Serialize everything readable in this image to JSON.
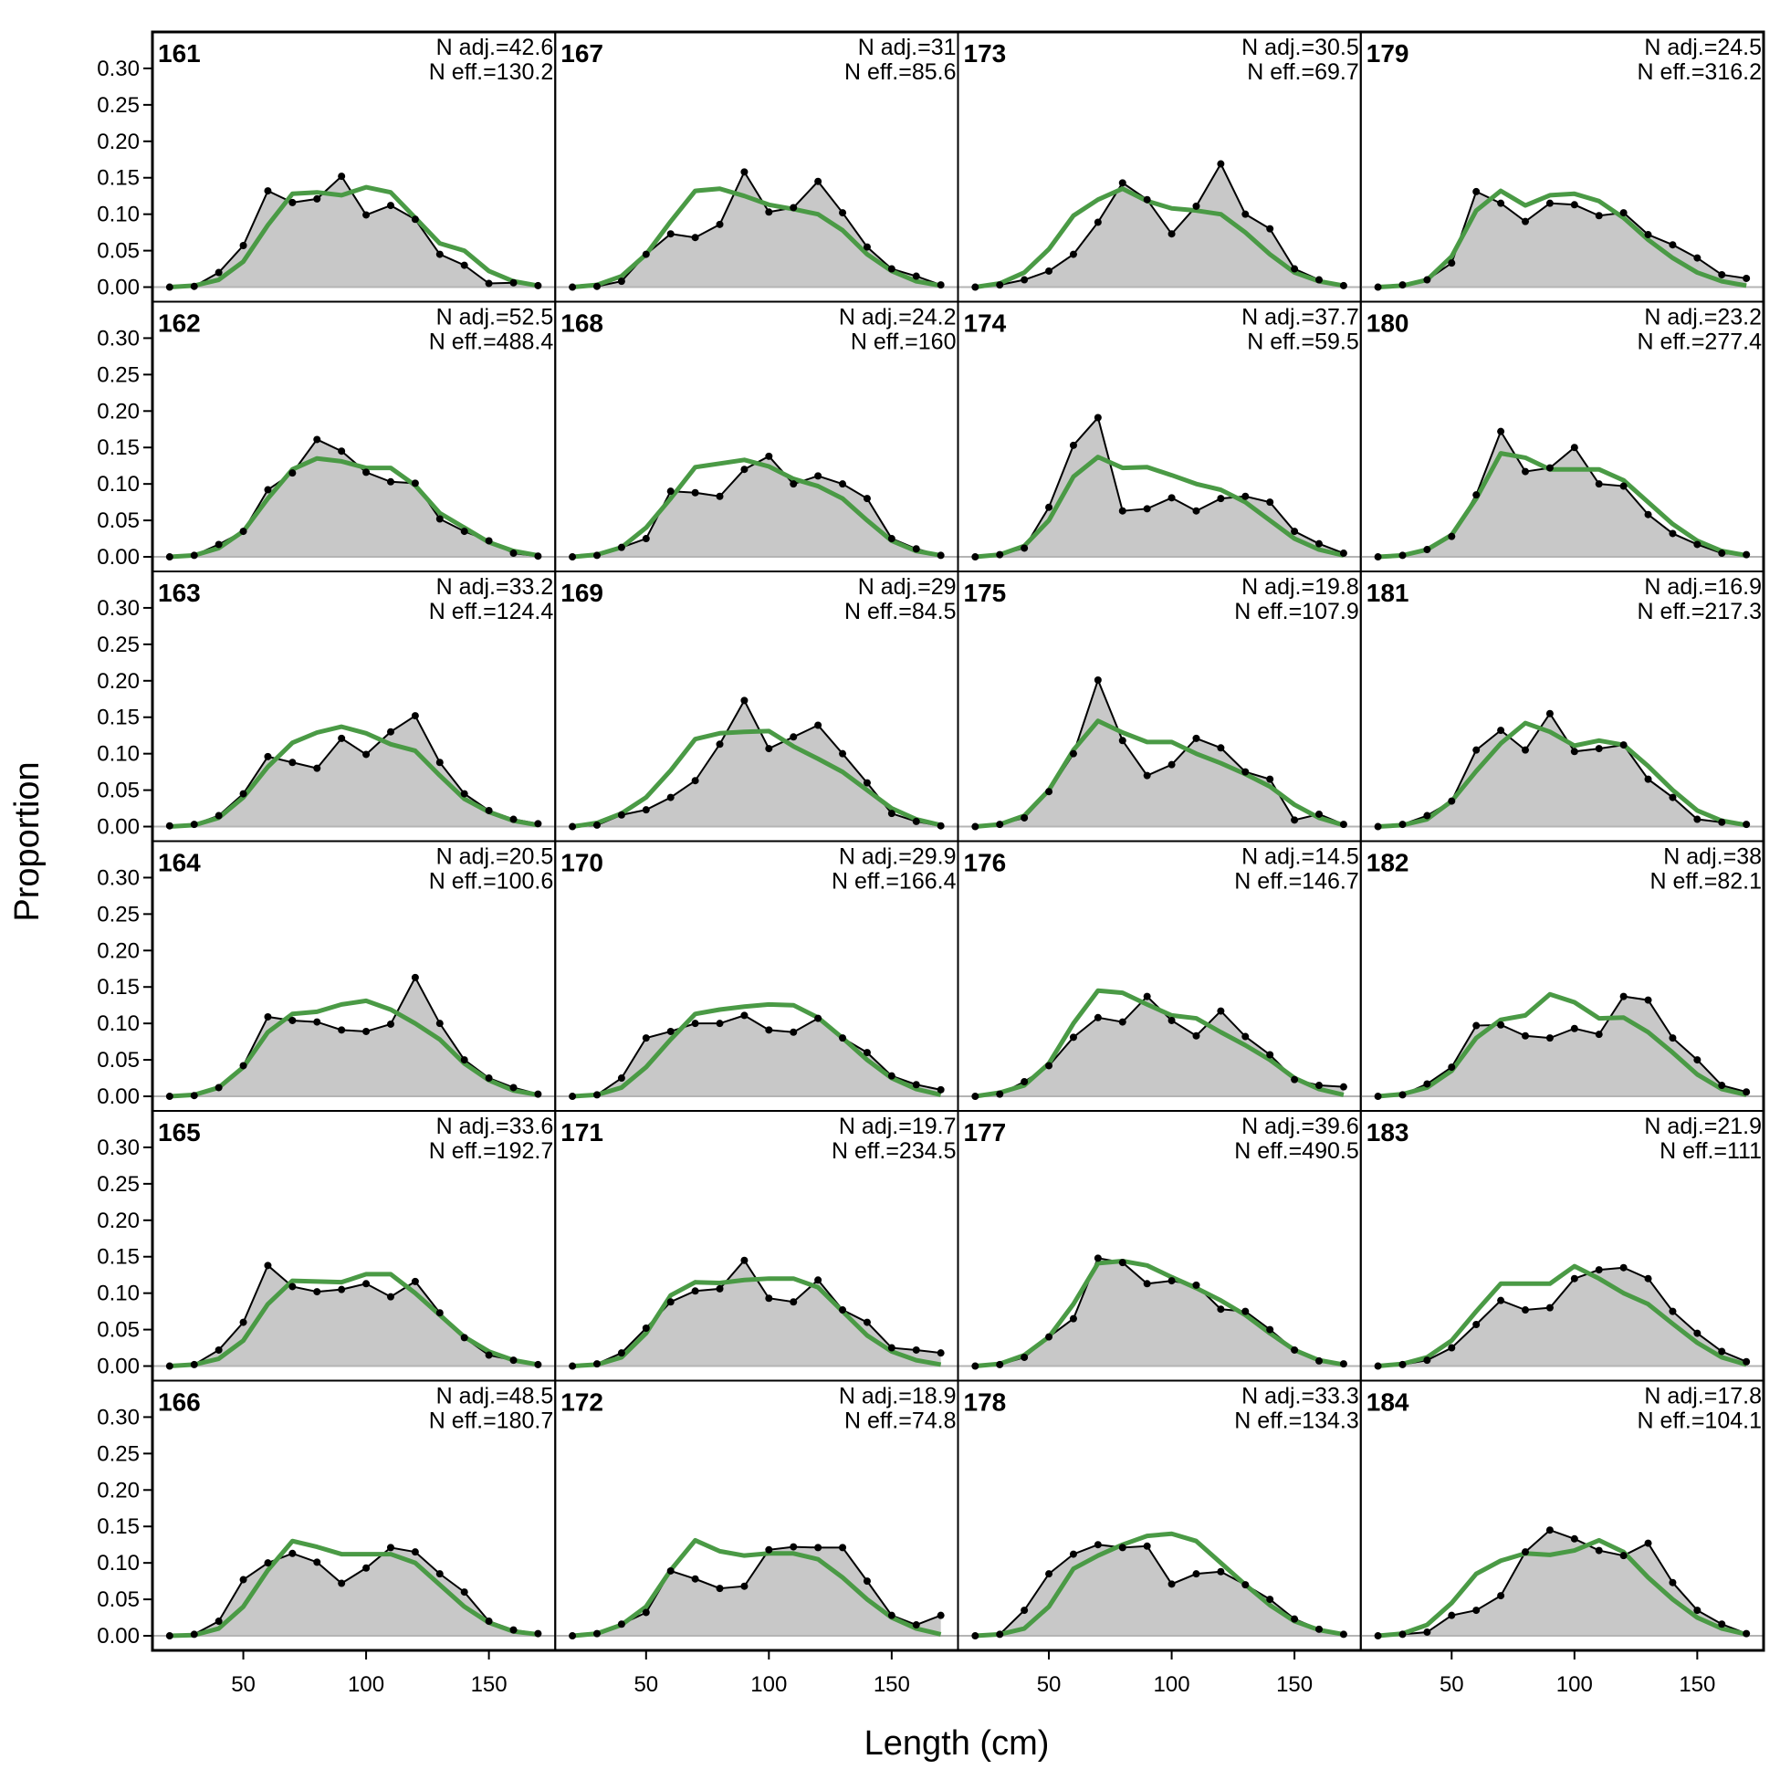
{
  "chart_data": {
    "type": "area",
    "xlabel": "Length (cm)",
    "ylabel": "Proportion",
    "xlim": [
      13,
      177
    ],
    "ylim": [
      -0.02,
      0.35
    ],
    "x_ticks": [
      50,
      100,
      150
    ],
    "y_ticks": [
      "0.00",
      "0.05",
      "0.10",
      "0.15",
      "0.20",
      "0.25",
      "0.30"
    ],
    "x": [
      20,
      30,
      40,
      50,
      60,
      70,
      80,
      90,
      100,
      110,
      120,
      130,
      140,
      150,
      160,
      170
    ],
    "grid": false,
    "layout": {
      "rows": 6,
      "cols": 4,
      "order": "column-major"
    },
    "series_styles": {
      "observed": {
        "fill": "#c8c8c8",
        "line": "#000000",
        "points": true
      },
      "expected": {
        "line": "#4a9a45"
      }
    },
    "panels": [
      {
        "label": "161",
        "n_adj": "N adj.=42.6",
        "n_eff": "N eff.=130.2",
        "observed": [
          0.0,
          0.001,
          0.02,
          0.057,
          0.132,
          0.116,
          0.121,
          0.152,
          0.099,
          0.112,
          0.093,
          0.045,
          0.03,
          0.005,
          0.006,
          0.002
        ],
        "expected": [
          0.0,
          0.002,
          0.01,
          0.035,
          0.085,
          0.128,
          0.13,
          0.126,
          0.137,
          0.13,
          0.095,
          0.06,
          0.05,
          0.022,
          0.008,
          0.002
        ]
      },
      {
        "label": "162",
        "n_adj": "N adj.=52.5",
        "n_eff": "N eff.=488.4",
        "observed": [
          0.0,
          0.002,
          0.017,
          0.035,
          0.092,
          0.115,
          0.161,
          0.145,
          0.116,
          0.103,
          0.101,
          0.052,
          0.035,
          0.022,
          0.005,
          0.001
        ],
        "expected": [
          0.0,
          0.002,
          0.012,
          0.035,
          0.08,
          0.12,
          0.135,
          0.131,
          0.122,
          0.122,
          0.098,
          0.06,
          0.04,
          0.02,
          0.008,
          0.002
        ]
      },
      {
        "label": "163",
        "n_adj": "N adj.=33.2",
        "n_eff": "N eff.=124.4",
        "observed": [
          0.001,
          0.003,
          0.015,
          0.045,
          0.096,
          0.088,
          0.08,
          0.121,
          0.099,
          0.13,
          0.152,
          0.088,
          0.045,
          0.022,
          0.01,
          0.004
        ],
        "expected": [
          0.0,
          0.002,
          0.012,
          0.04,
          0.082,
          0.115,
          0.129,
          0.137,
          0.128,
          0.113,
          0.104,
          0.07,
          0.038,
          0.02,
          0.008,
          0.002
        ]
      },
      {
        "label": "164",
        "n_adj": "N adj.=20.5",
        "n_eff": "N eff.=100.6",
        "observed": [
          0.0,
          0.001,
          0.012,
          0.042,
          0.109,
          0.104,
          0.102,
          0.091,
          0.089,
          0.099,
          0.163,
          0.1,
          0.05,
          0.025,
          0.012,
          0.003
        ],
        "expected": [
          0.0,
          0.002,
          0.012,
          0.04,
          0.088,
          0.113,
          0.116,
          0.126,
          0.131,
          0.119,
          0.1,
          0.078,
          0.045,
          0.022,
          0.008,
          0.002
        ]
      },
      {
        "label": "165",
        "n_adj": "N adj.=33.6",
        "n_eff": "N eff.=192.7",
        "observed": [
          0.0,
          0.002,
          0.022,
          0.06,
          0.138,
          0.109,
          0.102,
          0.105,
          0.113,
          0.095,
          0.116,
          0.073,
          0.039,
          0.015,
          0.008,
          0.002
        ],
        "expected": [
          0.0,
          0.002,
          0.01,
          0.035,
          0.085,
          0.117,
          0.116,
          0.115,
          0.126,
          0.126,
          0.1,
          0.07,
          0.04,
          0.02,
          0.008,
          0.002
        ]
      },
      {
        "label": "166",
        "n_adj": "N adj.=48.5",
        "n_eff": "N eff.=180.7",
        "observed": [
          0.0,
          0.002,
          0.02,
          0.077,
          0.1,
          0.113,
          0.101,
          0.072,
          0.093,
          0.121,
          0.115,
          0.085,
          0.06,
          0.02,
          0.008,
          0.003
        ],
        "expected": [
          0.0,
          0.001,
          0.01,
          0.04,
          0.09,
          0.13,
          0.122,
          0.112,
          0.112,
          0.112,
          0.1,
          0.07,
          0.04,
          0.018,
          0.006,
          0.002
        ]
      },
      {
        "label": "167",
        "n_adj": "N adj.=31",
        "n_eff": "N eff.=85.6",
        "observed": [
          0.0,
          0.001,
          0.008,
          0.045,
          0.073,
          0.068,
          0.086,
          0.158,
          0.103,
          0.109,
          0.145,
          0.102,
          0.055,
          0.025,
          0.015,
          0.003
        ],
        "expected": [
          0.0,
          0.003,
          0.015,
          0.045,
          0.09,
          0.132,
          0.135,
          0.125,
          0.113,
          0.107,
          0.1,
          0.078,
          0.045,
          0.022,
          0.008,
          0.002
        ]
      },
      {
        "label": "168",
        "n_adj": "N adj.=24.2",
        "n_eff": "N eff.=160",
        "observed": [
          0.0,
          0.002,
          0.013,
          0.025,
          0.09,
          0.088,
          0.083,
          0.12,
          0.138,
          0.1,
          0.111,
          0.1,
          0.08,
          0.025,
          0.011,
          0.002
        ],
        "expected": [
          0.0,
          0.003,
          0.013,
          0.04,
          0.08,
          0.123,
          0.128,
          0.133,
          0.124,
          0.107,
          0.097,
          0.08,
          0.05,
          0.022,
          0.008,
          0.002
        ]
      },
      {
        "label": "169",
        "n_adj": "N adj.=29",
        "n_eff": "N eff.=84.5",
        "observed": [
          0.0,
          0.002,
          0.016,
          0.023,
          0.04,
          0.063,
          0.113,
          0.173,
          0.107,
          0.123,
          0.139,
          0.1,
          0.06,
          0.018,
          0.007,
          0.001
        ],
        "expected": [
          0.0,
          0.005,
          0.018,
          0.04,
          0.077,
          0.12,
          0.128,
          0.13,
          0.131,
          0.11,
          0.093,
          0.075,
          0.05,
          0.025,
          0.01,
          0.002
        ]
      },
      {
        "label": "170",
        "n_adj": "N adj.=29.9",
        "n_eff": "N eff.=166.4",
        "observed": [
          0.0,
          0.002,
          0.025,
          0.08,
          0.089,
          0.1,
          0.1,
          0.111,
          0.091,
          0.088,
          0.107,
          0.08,
          0.06,
          0.028,
          0.016,
          0.009
        ],
        "expected": [
          0.0,
          0.002,
          0.012,
          0.04,
          0.078,
          0.113,
          0.119,
          0.123,
          0.126,
          0.125,
          0.108,
          0.08,
          0.05,
          0.025,
          0.01,
          0.002
        ]
      },
      {
        "label": "171",
        "n_adj": "N adj.=19.7",
        "n_eff": "N eff.=234.5",
        "observed": [
          0.0,
          0.003,
          0.018,
          0.052,
          0.088,
          0.103,
          0.106,
          0.145,
          0.093,
          0.088,
          0.118,
          0.077,
          0.06,
          0.025,
          0.022,
          0.018
        ],
        "expected": [
          0.0,
          0.002,
          0.012,
          0.045,
          0.097,
          0.115,
          0.114,
          0.118,
          0.12,
          0.12,
          0.108,
          0.075,
          0.042,
          0.02,
          0.008,
          0.002
        ]
      },
      {
        "label": "172",
        "n_adj": "N adj.=18.9",
        "n_eff": "N eff.=74.8",
        "observed": [
          0.0,
          0.003,
          0.016,
          0.032,
          0.089,
          0.078,
          0.065,
          0.068,
          0.118,
          0.122,
          0.121,
          0.121,
          0.075,
          0.028,
          0.015,
          0.028
        ],
        "expected": [
          0.0,
          0.003,
          0.015,
          0.04,
          0.09,
          0.131,
          0.116,
          0.11,
          0.113,
          0.113,
          0.105,
          0.08,
          0.05,
          0.025,
          0.01,
          0.002
        ]
      },
      {
        "label": "173",
        "n_adj": "N adj.=30.5",
        "n_eff": "N eff.=69.7",
        "observed": [
          0.0,
          0.003,
          0.01,
          0.022,
          0.045,
          0.089,
          0.143,
          0.12,
          0.073,
          0.111,
          0.169,
          0.1,
          0.08,
          0.025,
          0.01,
          0.002
        ],
        "expected": [
          0.0,
          0.005,
          0.02,
          0.052,
          0.098,
          0.12,
          0.135,
          0.118,
          0.108,
          0.105,
          0.1,
          0.075,
          0.045,
          0.02,
          0.008,
          0.002
        ]
      },
      {
        "label": "174",
        "n_adj": "N adj.=37.7",
        "n_eff": "N eff.=59.5",
        "observed": [
          0.0,
          0.003,
          0.012,
          0.068,
          0.153,
          0.191,
          0.063,
          0.066,
          0.081,
          0.063,
          0.08,
          0.083,
          0.075,
          0.035,
          0.018,
          0.005
        ],
        "expected": [
          0.0,
          0.003,
          0.015,
          0.05,
          0.11,
          0.137,
          0.122,
          0.123,
          0.112,
          0.1,
          0.092,
          0.075,
          0.05,
          0.025,
          0.01,
          0.002
        ]
      },
      {
        "label": "175",
        "n_adj": "N adj.=19.8",
        "n_eff": "N eff.=107.9",
        "observed": [
          0.0,
          0.003,
          0.012,
          0.048,
          0.1,
          0.201,
          0.118,
          0.07,
          0.085,
          0.121,
          0.108,
          0.075,
          0.065,
          0.009,
          0.017,
          0.003
        ],
        "expected": [
          0.0,
          0.003,
          0.015,
          0.05,
          0.105,
          0.145,
          0.129,
          0.116,
          0.116,
          0.1,
          0.087,
          0.072,
          0.055,
          0.03,
          0.012,
          0.002
        ]
      },
      {
        "label": "176",
        "n_adj": "N adj.=14.5",
        "n_eff": "N eff.=146.7",
        "observed": [
          0.0,
          0.003,
          0.02,
          0.042,
          0.081,
          0.108,
          0.102,
          0.137,
          0.104,
          0.083,
          0.117,
          0.082,
          0.057,
          0.023,
          0.015,
          0.013
        ],
        "expected": [
          0.0,
          0.005,
          0.015,
          0.045,
          0.1,
          0.145,
          0.142,
          0.126,
          0.111,
          0.107,
          0.088,
          0.07,
          0.05,
          0.025,
          0.01,
          0.002
        ]
      },
      {
        "label": "177",
        "n_adj": "N adj.=39.6",
        "n_eff": "N eff.=490.5",
        "observed": [
          0.0,
          0.002,
          0.012,
          0.04,
          0.065,
          0.148,
          0.142,
          0.113,
          0.117,
          0.111,
          0.078,
          0.075,
          0.05,
          0.022,
          0.007,
          0.003
        ],
        "expected": [
          0.0,
          0.003,
          0.015,
          0.04,
          0.085,
          0.141,
          0.144,
          0.138,
          0.122,
          0.107,
          0.09,
          0.07,
          0.045,
          0.022,
          0.008,
          0.002
        ]
      },
      {
        "label": "178",
        "n_adj": "N adj.=33.3",
        "n_eff": "N eff.=134.3",
        "observed": [
          0.0,
          0.002,
          0.035,
          0.085,
          0.112,
          0.125,
          0.121,
          0.123,
          0.071,
          0.085,
          0.088,
          0.07,
          0.05,
          0.023,
          0.009,
          0.002
        ],
        "expected": [
          0.0,
          0.002,
          0.01,
          0.04,
          0.092,
          0.11,
          0.125,
          0.137,
          0.14,
          0.13,
          0.1,
          0.07,
          0.042,
          0.02,
          0.008,
          0.002
        ]
      },
      {
        "label": "179",
        "n_adj": "N adj.=24.5",
        "n_eff": "N eff.=316.2",
        "observed": [
          0.0,
          0.003,
          0.01,
          0.033,
          0.131,
          0.115,
          0.09,
          0.115,
          0.113,
          0.098,
          0.102,
          0.072,
          0.058,
          0.04,
          0.017,
          0.012
        ],
        "expected": [
          0.0,
          0.002,
          0.01,
          0.042,
          0.105,
          0.132,
          0.112,
          0.126,
          0.128,
          0.118,
          0.095,
          0.065,
          0.04,
          0.02,
          0.008,
          0.002
        ]
      },
      {
        "label": "180",
        "n_adj": "N adj.=23.2",
        "n_eff": "N eff.=277.4",
        "observed": [
          0.0,
          0.002,
          0.01,
          0.028,
          0.085,
          0.172,
          0.117,
          0.122,
          0.15,
          0.1,
          0.097,
          0.058,
          0.032,
          0.017,
          0.005,
          0.003
        ],
        "expected": [
          0.0,
          0.002,
          0.01,
          0.03,
          0.08,
          0.142,
          0.136,
          0.12,
          0.12,
          0.12,
          0.105,
          0.075,
          0.045,
          0.022,
          0.008,
          0.002
        ]
      },
      {
        "label": "181",
        "n_adj": "N adj.=16.9",
        "n_eff": "N eff.=217.3",
        "observed": [
          0.0,
          0.003,
          0.015,
          0.035,
          0.105,
          0.132,
          0.105,
          0.155,
          0.103,
          0.107,
          0.112,
          0.065,
          0.04,
          0.01,
          0.006,
          0.003
        ],
        "expected": [
          0.0,
          0.002,
          0.01,
          0.035,
          0.076,
          0.114,
          0.142,
          0.13,
          0.111,
          0.118,
          0.112,
          0.083,
          0.05,
          0.022,
          0.008,
          0.002
        ]
      },
      {
        "label": "182",
        "n_adj": "N adj.=38",
        "n_eff": "N eff.=82.1",
        "observed": [
          0.0,
          0.002,
          0.017,
          0.04,
          0.097,
          0.098,
          0.083,
          0.08,
          0.093,
          0.085,
          0.137,
          0.132,
          0.08,
          0.05,
          0.015,
          0.006
        ],
        "expected": [
          0.0,
          0.003,
          0.012,
          0.035,
          0.08,
          0.105,
          0.111,
          0.14,
          0.129,
          0.107,
          0.108,
          0.088,
          0.06,
          0.03,
          0.01,
          0.002
        ]
      },
      {
        "label": "183",
        "n_adj": "N adj.=21.9",
        "n_eff": "N eff.=111",
        "observed": [
          0.0,
          0.002,
          0.008,
          0.025,
          0.057,
          0.09,
          0.077,
          0.08,
          0.12,
          0.132,
          0.135,
          0.12,
          0.075,
          0.045,
          0.02,
          0.006
        ],
        "expected": [
          0.0,
          0.003,
          0.012,
          0.035,
          0.075,
          0.113,
          0.113,
          0.113,
          0.137,
          0.12,
          0.1,
          0.085,
          0.058,
          0.032,
          0.012,
          0.002
        ]
      },
      {
        "label": "184",
        "n_adj": "N adj.=17.8",
        "n_eff": "N eff.=104.1",
        "observed": [
          0.0,
          0.002,
          0.005,
          0.028,
          0.035,
          0.055,
          0.115,
          0.145,
          0.133,
          0.117,
          0.11,
          0.127,
          0.073,
          0.035,
          0.016,
          0.003
        ],
        "expected": [
          0.0,
          0.003,
          0.015,
          0.045,
          0.085,
          0.103,
          0.113,
          0.111,
          0.117,
          0.131,
          0.115,
          0.08,
          0.05,
          0.025,
          0.01,
          0.002
        ]
      }
    ]
  }
}
